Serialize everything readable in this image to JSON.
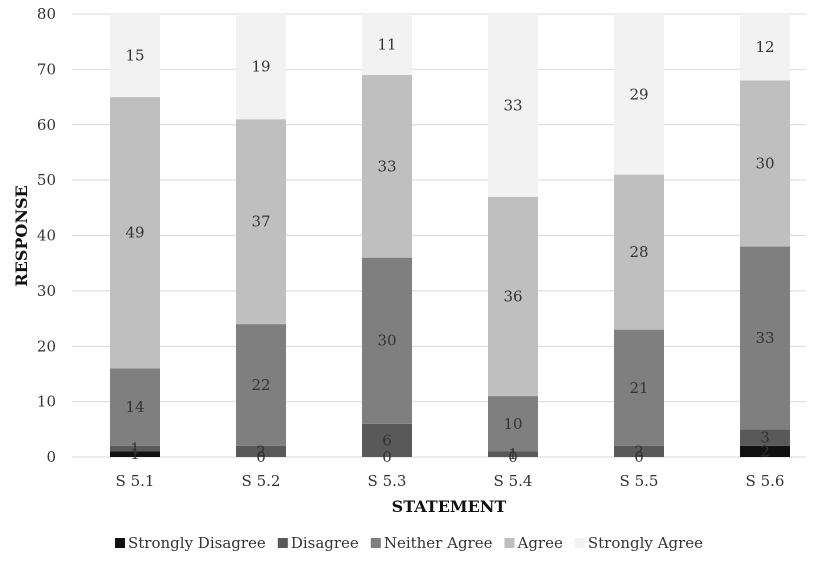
{
  "chart_data": {
    "type": "bar",
    "stacked": true,
    "title": "",
    "xlabel": "STATEMENT",
    "ylabel": "RESPONSE",
    "ylim": [
      0,
      80
    ],
    "yticks": [
      0,
      10,
      20,
      30,
      40,
      50,
      60,
      70,
      80
    ],
    "grid": true,
    "legend_position": "bottom",
    "categories": [
      "S 5.1",
      "S 5.2",
      "S 5.3",
      "S 5.4",
      "S 5.5",
      "S 5.6"
    ],
    "series": [
      {
        "name": "Strongly Disagree",
        "color": "#111111",
        "values": [
          1,
          0,
          0,
          0,
          0,
          2
        ]
      },
      {
        "name": "Disagree",
        "color": "#595959",
        "values": [
          1,
          2,
          6,
          1,
          2,
          3
        ]
      },
      {
        "name": "Neither Agree",
        "color": "#7f7f7f",
        "values": [
          14,
          22,
          30,
          10,
          21,
          33
        ]
      },
      {
        "name": "Agree",
        "color": "#bfbfbf",
        "values": [
          49,
          37,
          33,
          36,
          28,
          30
        ]
      },
      {
        "name": "Strongly Agree",
        "color": "#f2f2f2",
        "values": [
          15,
          19,
          11,
          33,
          29,
          12
        ]
      }
    ]
  }
}
